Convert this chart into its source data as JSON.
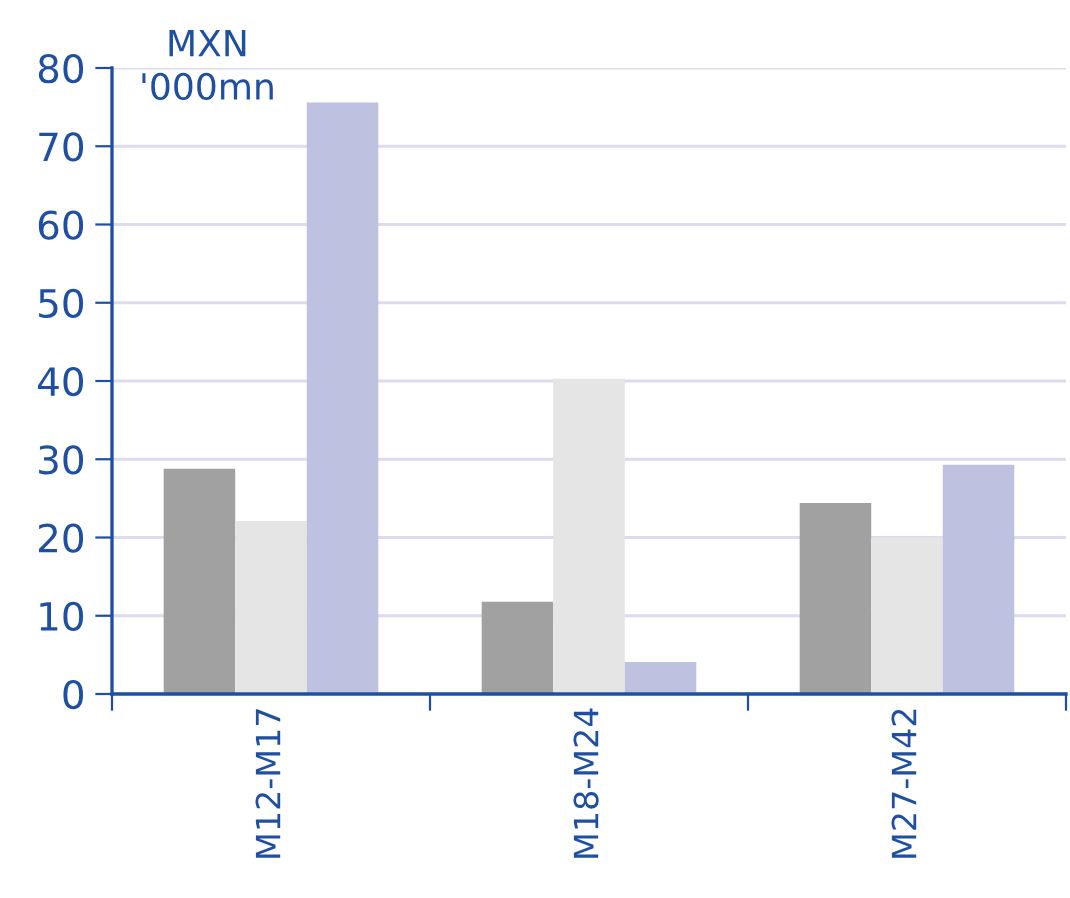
{
  "chart_data": {
    "type": "bar",
    "ylabel": "MXN\n'000mn",
    "categories": [
      "M12-M17",
      "M18-M24",
      "M27-M42"
    ],
    "series": [
      {
        "color": "#a1a1a1",
        "values": [
          28.8,
          11.8,
          24.4
        ]
      },
      {
        "color": "#e5e5e5",
        "values": [
          22.1,
          40.3,
          20.0
        ]
      },
      {
        "color": "#bec1df",
        "values": [
          75.6,
          4.1,
          29.3
        ]
      }
    ],
    "ylim": [
      0,
      80
    ],
    "yticks": [
      0,
      10,
      20,
      30,
      40,
      50,
      60,
      70,
      80
    ],
    "grid": "y",
    "legend": false
  }
}
